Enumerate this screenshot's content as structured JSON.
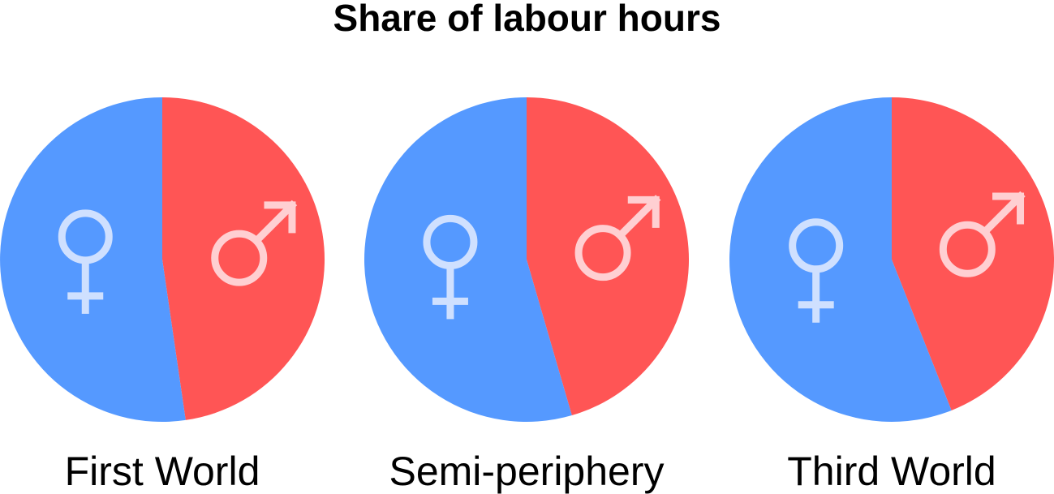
{
  "chart_data": {
    "type": "pie",
    "title": "Share of labour hours",
    "slice_colors": {
      "female": "#5599ff",
      "male": "#ff5555",
      "symbol_female": "#cfe0ff",
      "symbol_male": "#ffcfd2"
    },
    "icons": {
      "female": "female-symbol-icon",
      "male": "male-symbol-icon"
    },
    "pies": [
      {
        "label": "First World",
        "slices": [
          {
            "name": "female",
            "value": 52.3
          },
          {
            "name": "male",
            "value": 47.7
          }
        ]
      },
      {
        "label": "Semi-periphery",
        "slices": [
          {
            "name": "female",
            "value": 54.5
          },
          {
            "name": "male",
            "value": 45.5
          }
        ]
      },
      {
        "label": "Third World",
        "slices": [
          {
            "name": "female",
            "value": 56.0
          },
          {
            "name": "male",
            "value": 44.0
          }
        ]
      }
    ]
  }
}
